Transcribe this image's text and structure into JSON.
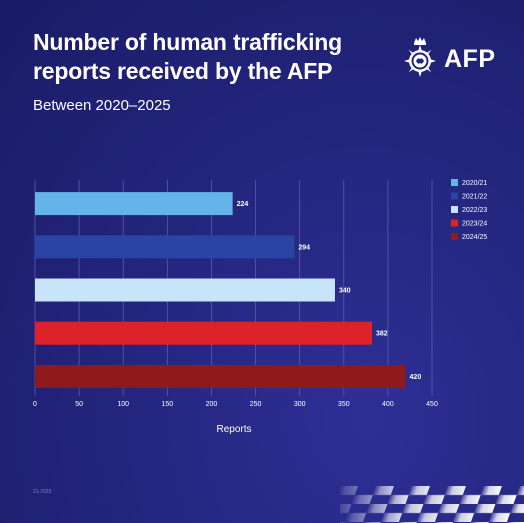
{
  "header": {
    "title": "Number of human trafficking reports received by the AFP",
    "subtitle": "Between 2020–2025"
  },
  "logo": {
    "text": "AFP",
    "emblem_icon": "afp-crest-icon"
  },
  "footer": {
    "code": "21-2025"
  },
  "colors": {
    "background": "#24267f",
    "grid": "#5a5ca8",
    "bar_2020_21": "#64b4ea",
    "bar_2021_22": "#2a44a3",
    "bar_2022_23": "#c8e4f8",
    "bar_2023_24": "#dd2229",
    "bar_2024_25": "#8e1a1c"
  },
  "chart_data": {
    "type": "bar",
    "orientation": "horizontal",
    "categories": [
      "2020/21",
      "2021/22",
      "2022/23",
      "2023/24",
      "2024/25"
    ],
    "values": [
      224,
      294,
      340,
      382,
      420
    ],
    "data_labels": [
      "224",
      "294",
      "340",
      "382",
      "420"
    ],
    "xlabel": "Reports",
    "xlim": [
      0,
      450
    ],
    "xticks": [
      0,
      50,
      100,
      150,
      200,
      250,
      300,
      350,
      400,
      450
    ],
    "grid": true,
    "legend": {
      "position": "right",
      "entries": [
        "2020/21",
        "2021/22",
        "2022/23",
        "2023/24",
        "2024/25"
      ]
    }
  }
}
